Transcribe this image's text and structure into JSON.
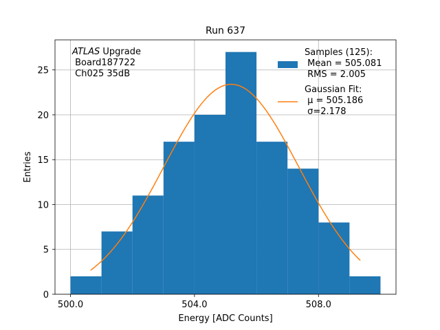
{
  "chart_data": {
    "type": "bar",
    "title": "Run 637",
    "xlabel": "Energy [ADC Counts]",
    "ylabel": "Entries",
    "xlim": [
      499.5,
      510.5
    ],
    "ylim": [
      0,
      28.35
    ],
    "grid": true,
    "x_ticks": [
      {
        "value": 500,
        "label": "500.0"
      },
      {
        "value": 504,
        "label": "504.0"
      },
      {
        "value": 508,
        "label": "508.0"
      }
    ],
    "y_ticks": [
      {
        "value": 0,
        "label": "0"
      },
      {
        "value": 5,
        "label": "5"
      },
      {
        "value": 10,
        "label": "10"
      },
      {
        "value": 15,
        "label": "15"
      },
      {
        "value": 20,
        "label": "20"
      },
      {
        "value": 25,
        "label": "25"
      }
    ],
    "histogram": {
      "bin_edges": [
        500,
        501,
        502,
        503,
        504,
        505,
        506,
        507,
        508,
        509,
        510
      ],
      "counts": [
        2,
        7,
        11,
        17,
        20,
        27,
        17,
        14,
        8,
        2
      ],
      "color": "#1f77b4"
    },
    "gaussian_fit": {
      "amplitude": 23.4,
      "mu": 505.186,
      "sigma": 2.178,
      "x_range": [
        500.65,
        509.35
      ],
      "color": "#ff7f0e"
    },
    "annotation": {
      "italic": "ATLAS",
      "line1_rest": " Upgrade",
      "line2": " Board187722",
      "line3": " Ch025 35dB"
    },
    "legend": {
      "placement": "top-right",
      "samples": {
        "line1": "Samples (125):",
        "line2": " Mean = 505.081",
        "line3": " RMS = 2.005"
      },
      "fit": {
        "line1": "Gaussian Fit:",
        "line2": " μ = 505.186",
        "line3": " σ=2.178"
      }
    }
  }
}
